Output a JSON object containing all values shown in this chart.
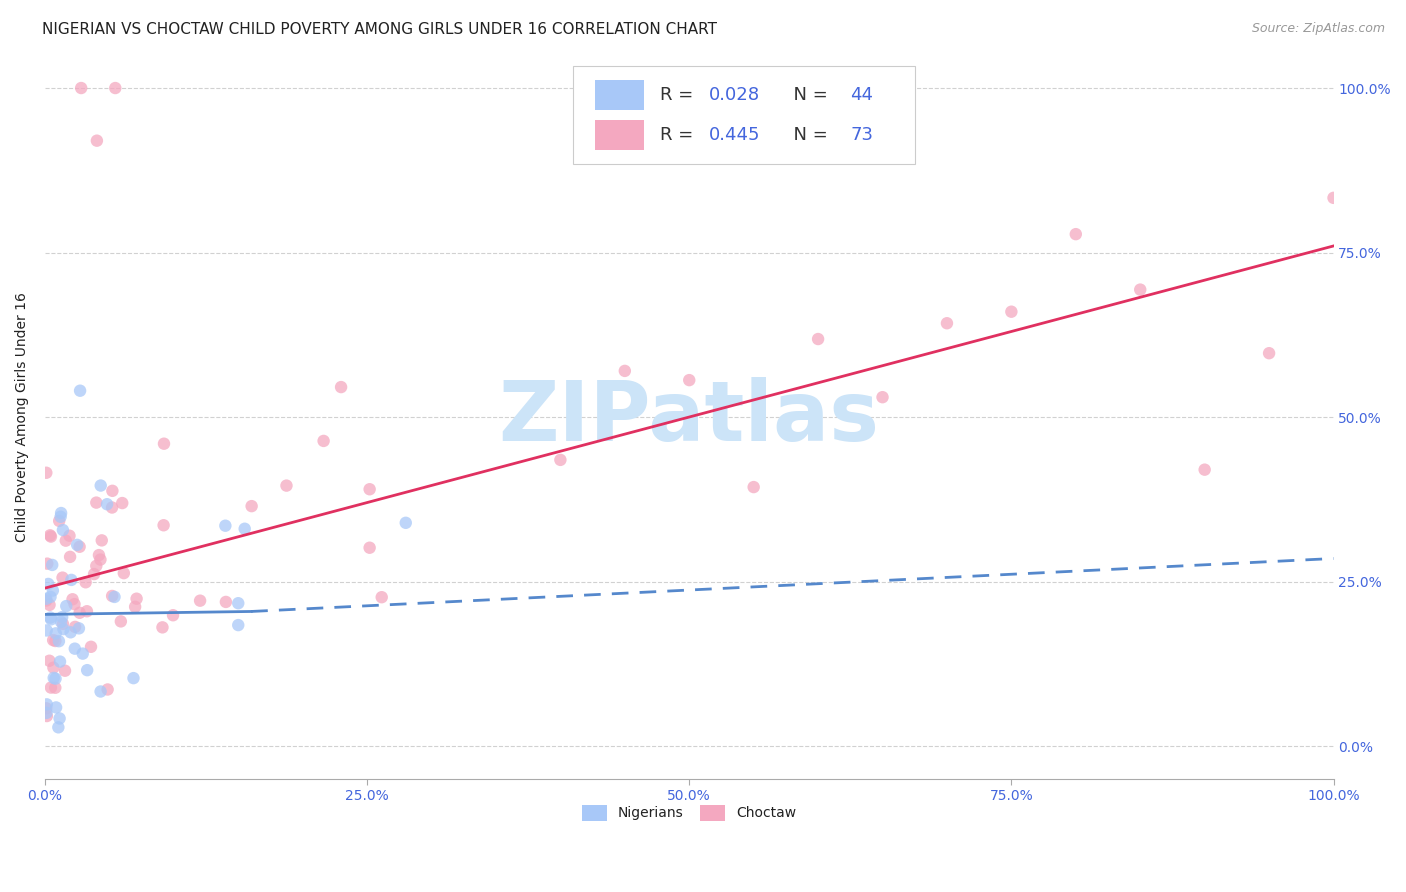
{
  "title": "NIGERIAN VS CHOCTAW CHILD POVERTY AMONG GIRLS UNDER 16 CORRELATION CHART",
  "source": "Source: ZipAtlas.com",
  "ylabel": "Child Poverty Among Girls Under 16",
  "watermark": "ZIPatlas",
  "nigerian_R": 0.028,
  "nigerian_N": 44,
  "choctaw_R": 0.445,
  "choctaw_N": 73,
  "nigerian_color": "#a8c8f8",
  "choctaw_color": "#f4a8c0",
  "trend_nigerian_color": "#5588cc",
  "trend_choctaw_color": "#e03060",
  "xlim": [
    0,
    1
  ],
  "ylim": [
    -0.05,
    1.05
  ],
  "xticks": [
    0,
    0.25,
    0.5,
    0.75,
    1.0
  ],
  "yticks": [
    0,
    0.25,
    0.5,
    0.75,
    1.0
  ],
  "xticklabels": [
    "0.0%",
    "25.0%",
    "50.0%",
    "75.0%",
    "100.0%"
  ],
  "yticklabels": [
    "0.0%",
    "25.0%",
    "50.0%",
    "75.0%",
    "100.0%"
  ],
  "background_color": "#ffffff",
  "grid_color": "#cccccc",
  "text_color_blue": "#4466dd",
  "text_color_dark": "#222222",
  "title_fontsize": 11,
  "label_fontsize": 10,
  "tick_fontsize": 10,
  "legend_fontsize": 13,
  "watermark_fontsize": 60,
  "watermark_color": "#cce4f8",
  "source_fontsize": 9,
  "nig_trend_x0": 0.0,
  "nig_trend_x1": 1.0,
  "nig_trend_y0": 0.2,
  "nig_trend_y1": 0.285,
  "cho_trend_x0": 0.0,
  "cho_trend_x1": 1.0,
  "cho_trend_y0": 0.24,
  "cho_trend_y1": 0.76
}
